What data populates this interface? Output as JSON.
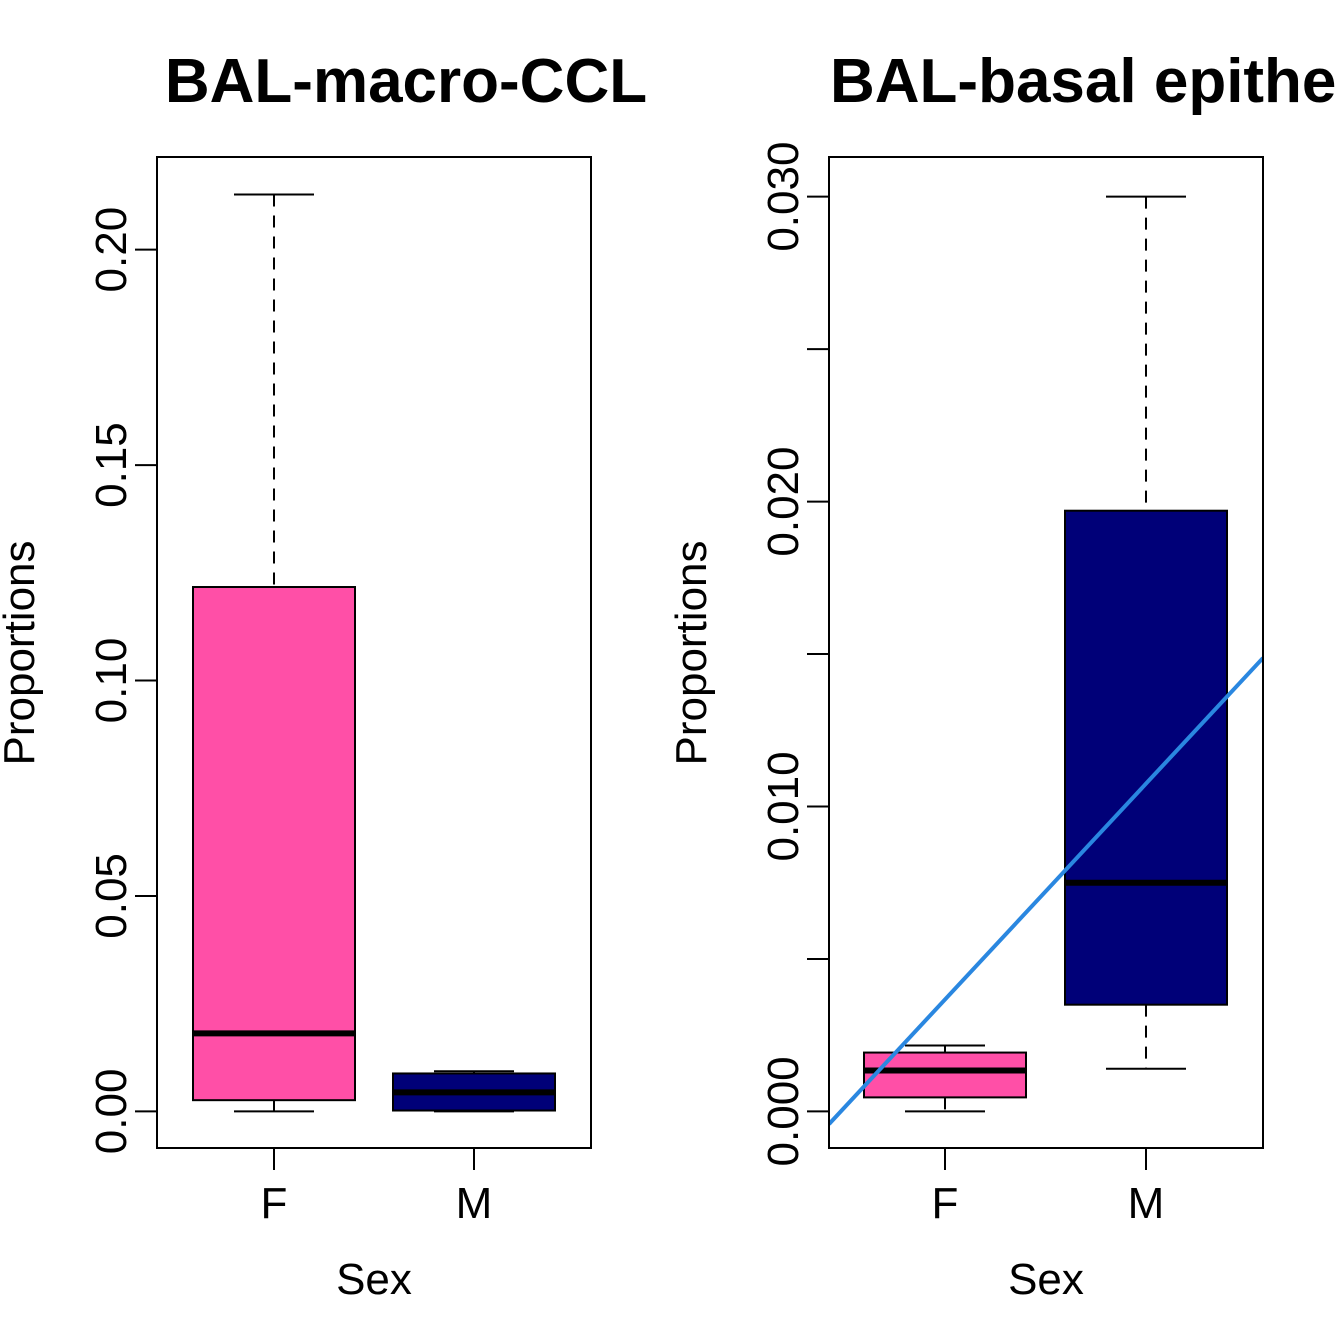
{
  "chart_data": [
    {
      "type": "box",
      "title": "BAL-macro-CCL",
      "xlabel": "Sex",
      "ylabel": "Proportions",
      "categories": [
        "F",
        "M"
      ],
      "ylim": [
        -0.0085,
        0.2215
      ],
      "yticks": [
        0.0,
        0.05,
        0.1,
        0.15,
        0.2
      ],
      "ytick_labels": [
        "0.00",
        "0.05",
        "0.10",
        "0.15",
        "0.20"
      ],
      "boxes": [
        {
          "name": "F",
          "whisker_low": 0.0,
          "q1": 0.0026,
          "median": 0.0181,
          "q3": 0.1217,
          "whisker_high": 0.2128,
          "color": "#FF4FA7"
        },
        {
          "name": "M",
          "whisker_low": 0.0,
          "q1": 0.0002,
          "median": 0.0044,
          "q3": 0.0088,
          "whisker_high": 0.0093,
          "color": "#000078"
        }
      ],
      "grid": false
    },
    {
      "type": "box",
      "title": "BAL-basal epithe",
      "xlabel": "Sex",
      "ylabel": "Proportions",
      "categories": [
        "F",
        "M"
      ],
      "ylim": [
        -0.0012,
        0.0313
      ],
      "yticks": [
        0.0,
        0.005,
        0.01,
        0.015,
        0.02,
        0.025,
        0.03
      ],
      "ytick_labels": [
        "0.000",
        "",
        "0.010",
        "",
        "0.020",
        "",
        "0.030"
      ],
      "boxes": [
        {
          "name": "F",
          "whisker_low": 0.0,
          "q1": 0.00046,
          "median": 0.00134,
          "q3": 0.00193,
          "whisker_high": 0.00216,
          "color": "#FF4FA7"
        },
        {
          "name": "M",
          "whisker_low": 0.0014,
          "q1": 0.0035,
          "median": 0.0075,
          "q3": 0.0197,
          "whisker_high": 0.03,
          "color": "#000078"
        }
      ],
      "trend_line": {
        "x": [
          "F",
          "M"
        ],
        "y": [
          0.00367,
          0.01075
        ],
        "color": "#2A87E0"
      },
      "grid": false
    }
  ]
}
